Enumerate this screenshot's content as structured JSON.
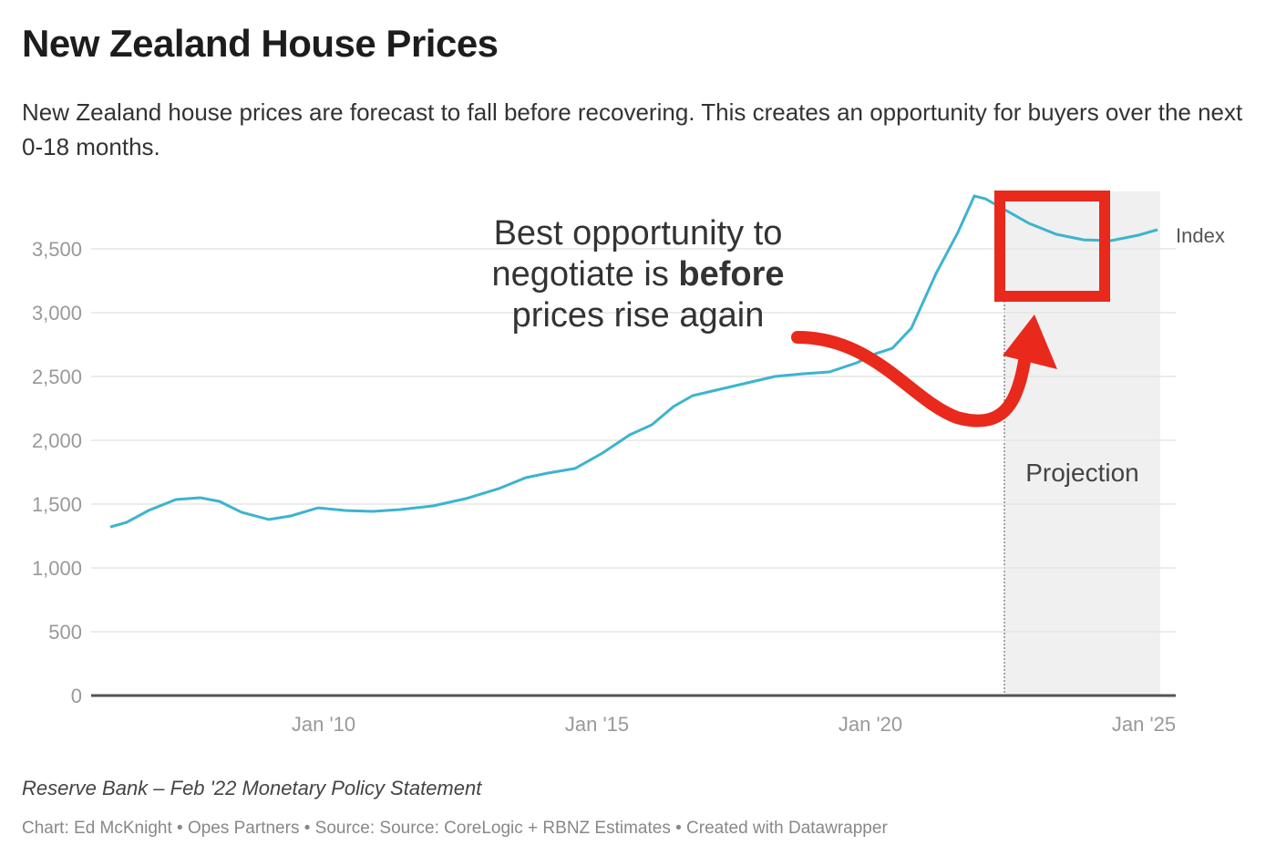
{
  "header": {
    "title": "New Zealand House Prices",
    "subtitle": "New Zealand house prices are forecast to fall before recovering. This creates an opportunity for buyers over the next 0-18 months."
  },
  "footer": {
    "notes": "Reserve Bank – Feb '22 Monetary Policy Statement",
    "credit": "Chart: Ed McKnight • Opes Partners • Source: Source: CoreLogic + RBNZ Estimates • Created with Datawrapper"
  },
  "chart_data": {
    "type": "line",
    "title": "New Zealand House Prices",
    "ylim": [
      0,
      3900
    ],
    "xlim": [
      2006,
      2025.5
    ],
    "y_ticks": [
      0,
      500,
      1000,
      1500,
      2000,
      2500,
      3000,
      3500
    ],
    "y_tick_labels": [
      "0",
      "500",
      "1,000",
      "1,500",
      "2,000",
      "2,500",
      "3,000",
      "3,500"
    ],
    "x_ticks": [
      2010,
      2015,
      2020,
      2025
    ],
    "x_tick_labels": [
      "Jan '10",
      "Jan '15",
      "Jan '20",
      "Jan '25"
    ],
    "grid": true,
    "line_color": "#3cb4cf",
    "series": [
      {
        "name": "Index",
        "x": [
          2006.1,
          2006.4,
          2006.8,
          2007.3,
          2007.75,
          2008.1,
          2008.5,
          2009,
          2009.4,
          2009.9,
          2010.4,
          2010.9,
          2011.4,
          2012,
          2012.6,
          2013.2,
          2013.7,
          2014.1,
          2014.6,
          2015.1,
          2015.6,
          2016,
          2016.4,
          2016.75,
          2017.25,
          2017.75,
          2018.25,
          2018.75,
          2019.25,
          2019.75,
          2020.1,
          2020.4,
          2020.75,
          2021.2,
          2021.6,
          2021.9,
          2022.1,
          2022.4,
          2022.9,
          2023.4,
          2023.9,
          2024.4,
          2024.9,
          2025.25
        ],
        "y": [
          1321,
          1357,
          1450,
          1536,
          1550,
          1521,
          1436,
          1379,
          1407,
          1471,
          1450,
          1443,
          1457,
          1486,
          1543,
          1621,
          1707,
          1743,
          1779,
          1900,
          2043,
          2121,
          2264,
          2350,
          2400,
          2450,
          2500,
          2521,
          2536,
          2607,
          2679,
          2721,
          2879,
          3307,
          3629,
          3914,
          3893,
          3821,
          3700,
          3614,
          3571,
          3564,
          3607,
          3650
        ]
      }
    ],
    "projection": {
      "label": "Projection",
      "start": 2022.45,
      "end": 2025.3,
      "color": "#f0f0f0"
    },
    "annotation": {
      "lines": [
        "Best opportunity to",
        "negotiate is ",
        "before",
        "prices rise again"
      ],
      "highlight_color": "#e8291c"
    }
  }
}
